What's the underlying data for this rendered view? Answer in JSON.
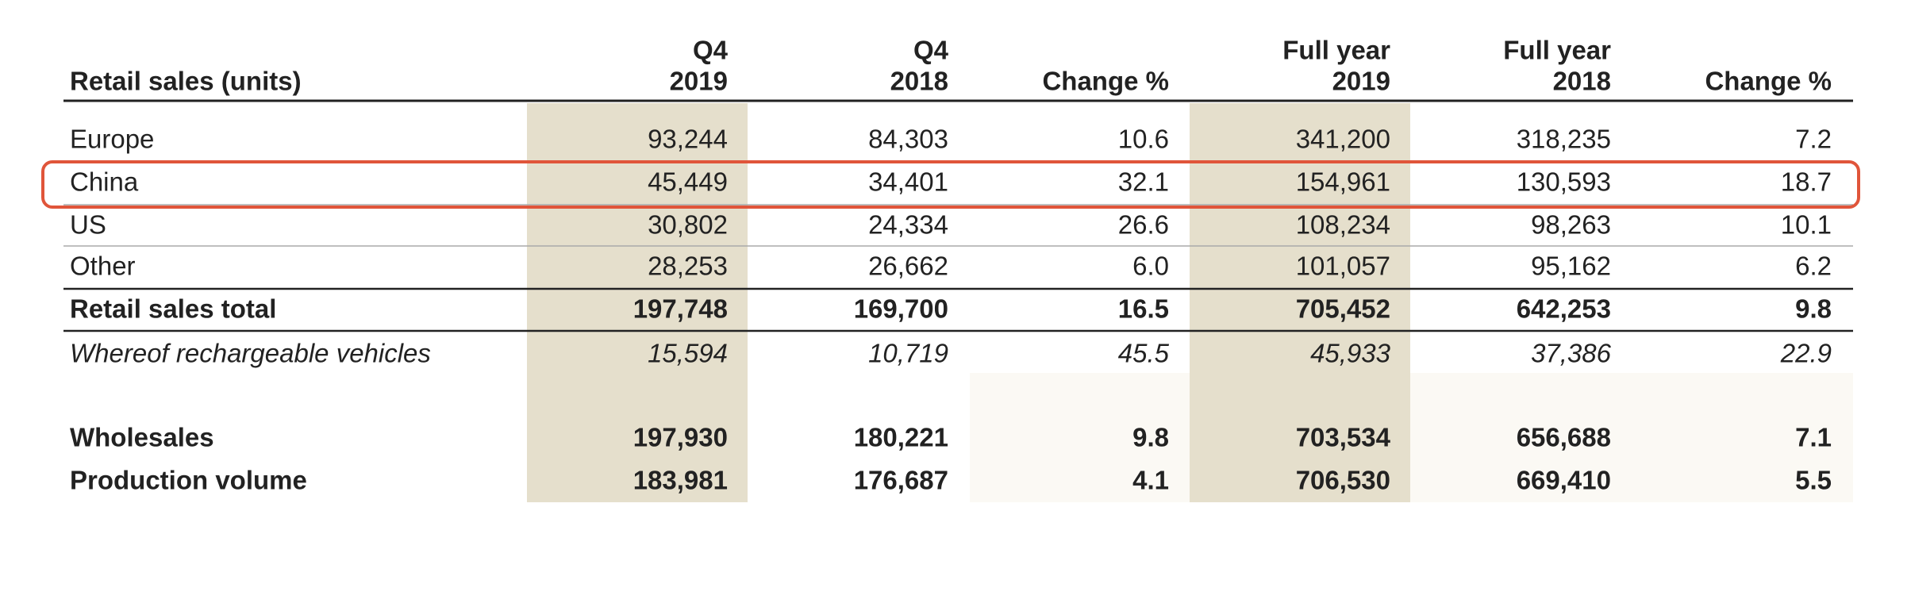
{
  "table": {
    "header": {
      "label": "Retail sales (units)",
      "columns": [
        [
          "Q4",
          "2019"
        ],
        [
          "Q4",
          "2018"
        ],
        [
          "Change %"
        ],
        [
          "Full year",
          "2019"
        ],
        [
          "Full year",
          "2018"
        ],
        [
          "Change %"
        ]
      ]
    },
    "rows": [
      {
        "label": "Europe",
        "style": "normal",
        "cells": [
          "93,244",
          "84,303",
          "10.6",
          "341,200",
          "318,235",
          "7.2"
        ]
      },
      {
        "label": "China",
        "style": "normal",
        "cells": [
          "45,449",
          "34,401",
          "32.1",
          "154,961",
          "130,593",
          "18.7"
        ]
      },
      {
        "label": "US",
        "style": "normal",
        "cells": [
          "30,802",
          "24,334",
          "26.6",
          "108,234",
          "98,263",
          "10.1"
        ]
      },
      {
        "label": "Other",
        "style": "normal",
        "cells": [
          "28,253",
          "26,662",
          "6.0",
          "101,057",
          "95,162",
          "6.2"
        ]
      },
      {
        "label": "Retail sales total",
        "style": "bold",
        "cells": [
          "197,748",
          "169,700",
          "16.5",
          "705,452",
          "642,253",
          "9.8"
        ]
      },
      {
        "label": "Whereof rechargeable vehicles",
        "style": "italic",
        "cells": [
          "15,594",
          "10,719",
          "45.5",
          "45,933",
          "37,386",
          "22.9"
        ]
      },
      {
        "label": "Wholesales",
        "style": "bold",
        "cells": [
          "197,930",
          "180,221",
          "9.8",
          "703,534",
          "656,688",
          "7.1"
        ]
      },
      {
        "label": "Production volume",
        "style": "bold",
        "cells": [
          "183,981",
          "176,687",
          "4.1",
          "706,530",
          "669,410",
          "5.5"
        ]
      }
    ]
  }
}
